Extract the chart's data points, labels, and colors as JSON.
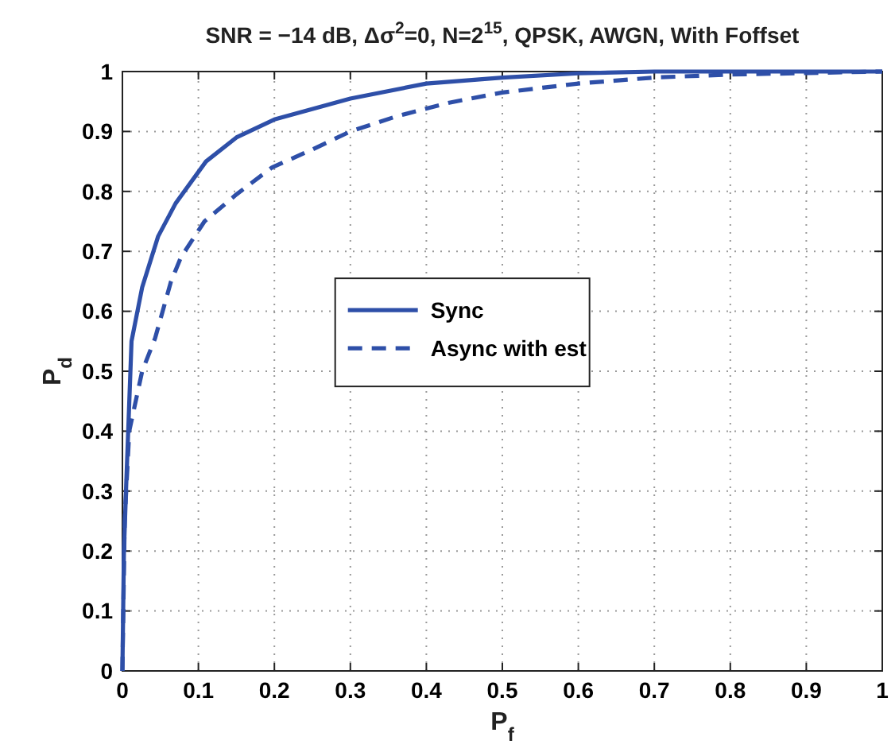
{
  "chart_data": {
    "type": "line",
    "title": "SNR = −14 dB, Δσ$^{2}$=0, N=2$^{15}$, QPSK, AWGN, With Foffset",
    "xlabel": "P$_{f}$",
    "ylabel": "P$_{d}$",
    "xlim": [
      0,
      1
    ],
    "ylim": [
      0,
      1
    ],
    "xticks": [
      0,
      0.1,
      0.2,
      0.3,
      0.4,
      0.5,
      0.6,
      0.7,
      0.8,
      0.9,
      1
    ],
    "yticks": [
      0,
      0.1,
      0.2,
      0.3,
      0.4,
      0.5,
      0.6,
      0.7,
      0.8,
      0.9,
      1
    ],
    "grid": true,
    "legend": "center",
    "series": [
      {
        "name": "Sync",
        "color": "#2e4fa8",
        "line_style": "solid",
        "x": [
          0,
          0.002,
          0.005,
          0.012,
          0.026,
          0.047,
          0.07,
          0.11,
          0.15,
          0.2,
          0.3,
          0.4,
          0.5,
          0.6,
          0.7,
          0.8,
          1
        ],
        "values": [
          0,
          0.2,
          0.31,
          0.55,
          0.64,
          0.725,
          0.78,
          0.85,
          0.89,
          0.92,
          0.955,
          0.98,
          0.99,
          0.997,
          1,
          1,
          1
        ]
      },
      {
        "name": "Async with est",
        "color": "#2e4fa8",
        "line_style": "dashed",
        "x": [
          0,
          0.003,
          0.009,
          0.026,
          0.043,
          0.064,
          0.077,
          0.108,
          0.15,
          0.197,
          0.25,
          0.3,
          0.36,
          0.43,
          0.5,
          0.6,
          0.7,
          0.8,
          1
        ],
        "values": [
          0,
          0.25,
          0.4,
          0.5,
          0.555,
          0.65,
          0.69,
          0.75,
          0.795,
          0.84,
          0.87,
          0.9,
          0.925,
          0.948,
          0.965,
          0.98,
          0.99,
          0.995,
          1
        ]
      }
    ]
  }
}
